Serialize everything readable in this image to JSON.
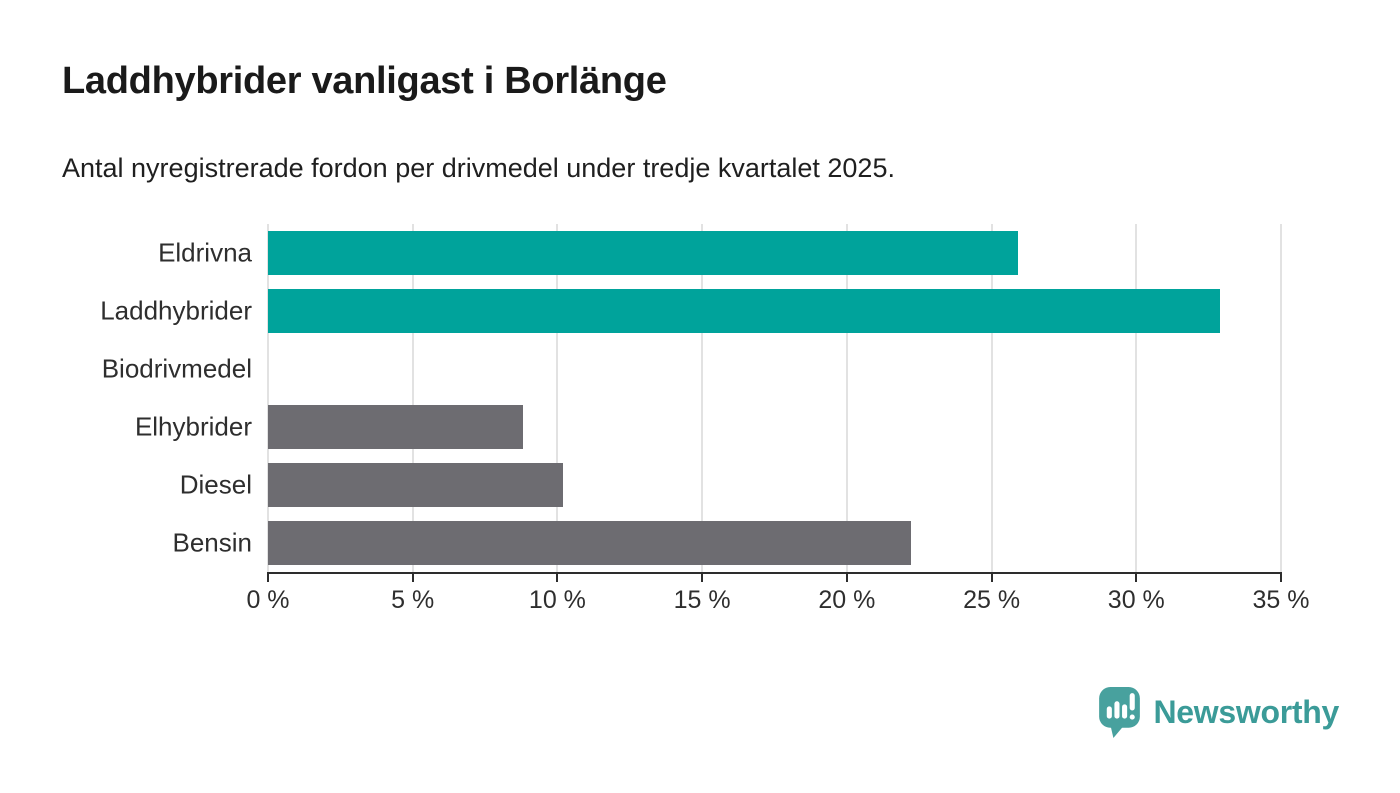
{
  "header": {
    "title": "Laddhybrider vanligast i Borlänge",
    "subtitle": "Antal nyregistrerade fordon per drivmedel under tredje kvartalet 2025."
  },
  "chart_data": {
    "type": "bar",
    "orientation": "horizontal",
    "title": "Laddhybrider vanligast i Borlänge",
    "subtitle": "Antal nyregistrerade fordon per drivmedel under tredje kvartalet 2025.",
    "categories": [
      "Eldrivna",
      "Laddhybrider",
      "Biodrivmedel",
      "Elhybrider",
      "Diesel",
      "Bensin"
    ],
    "values": [
      25.9,
      32.9,
      0,
      8.8,
      10.2,
      22.2
    ],
    "unit": "%",
    "xlabel": "",
    "ylabel": "",
    "xlim": [
      0,
      35
    ],
    "x_ticks": [
      0,
      5,
      10,
      15,
      20,
      25,
      30,
      35
    ],
    "x_tick_labels": [
      "0 %",
      "5 %",
      "10 %",
      "15 %",
      "20 %",
      "25 %",
      "30 %",
      "35 %"
    ],
    "bar_colors": [
      "#00a39b",
      "#00a39b",
      "#6d6c71",
      "#6d6c71",
      "#6d6c71",
      "#6d6c71"
    ],
    "grid": true,
    "legend_position": "none"
  },
  "style": {
    "highlight_color": "#00a39b",
    "muted_color": "#6d6c71",
    "gridline_color": "#e2e2e2",
    "axis_color": "#2d2d2d"
  },
  "branding": {
    "name": "Newsworthy",
    "text_color": "#3b9b98",
    "icon_color": "#48a19e",
    "icon": "bar-chart-speech-bubble-icon"
  }
}
